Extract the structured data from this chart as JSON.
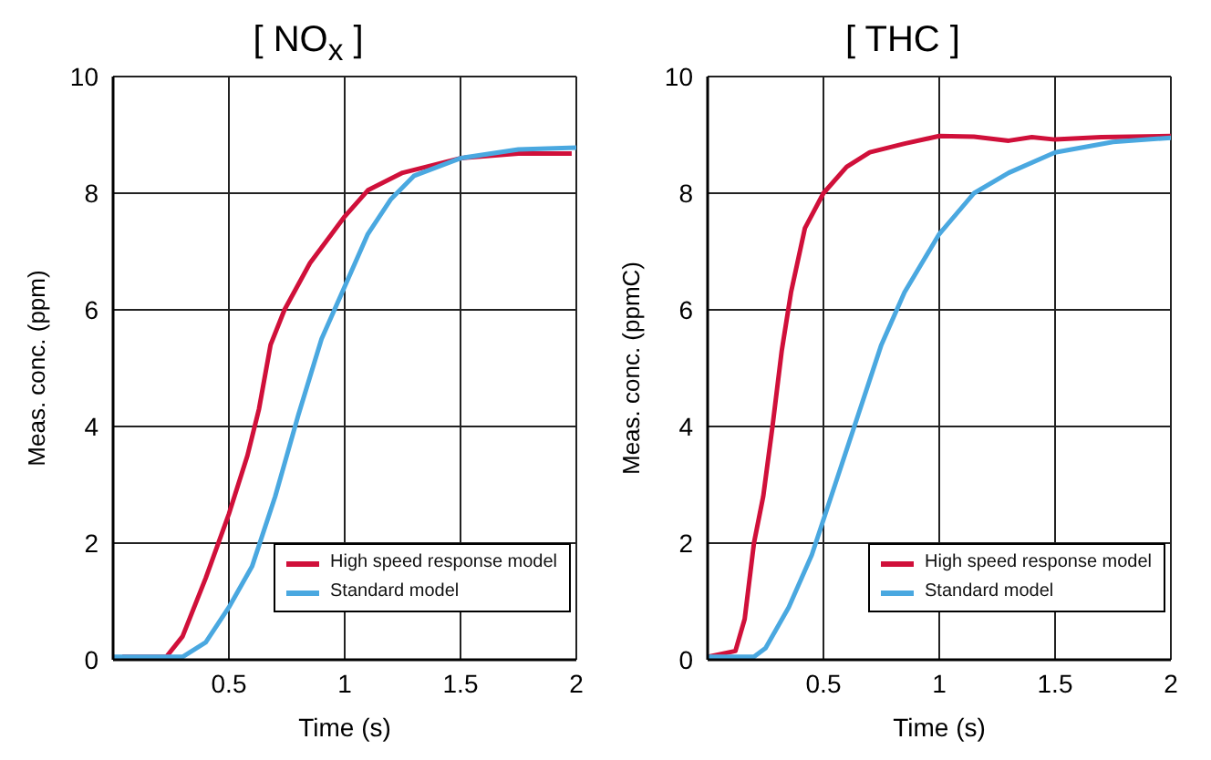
{
  "chart_data": [
    {
      "type": "line",
      "title": "[ NO$_{x}$ ]",
      "xlabel": "Time (s)",
      "ylabel": "Meas. conc. (ppm)",
      "xlim": [
        0,
        2
      ],
      "xticks": [
        0.5,
        1,
        1.5,
        2
      ],
      "ylim": [
        0,
        10
      ],
      "yticks": [
        0,
        2,
        4,
        6,
        8,
        10
      ],
      "grid": true,
      "legend": "bottom right",
      "marker": "none",
      "line_style": "solid",
      "series": [
        {
          "name": "High speed response model",
          "color": "#d0103a",
          "x": [
            0.04,
            0.23,
            0.3,
            0.4,
            0.5,
            0.58,
            0.63,
            0.68,
            0.74,
            0.85,
            1.0,
            1.1,
            1.25,
            1.5,
            1.75,
            1.98
          ],
          "values": [
            0.05,
            0.05,
            0.4,
            1.4,
            2.5,
            3.5,
            4.3,
            5.4,
            6.0,
            6.8,
            7.6,
            8.05,
            8.35,
            8.6,
            8.68,
            8.68
          ]
        },
        {
          "name": "Standard model",
          "color": "#4aa8e0",
          "x": [
            0.0,
            0.3,
            0.4,
            0.5,
            0.6,
            0.7,
            0.8,
            0.9,
            1.0,
            1.1,
            1.2,
            1.3,
            1.5,
            1.75,
            2.0
          ],
          "values": [
            0.05,
            0.05,
            0.3,
            0.9,
            1.6,
            2.8,
            4.2,
            5.5,
            6.4,
            7.3,
            7.9,
            8.3,
            8.6,
            8.75,
            8.78
          ]
        }
      ]
    },
    {
      "type": "line",
      "title": "[ THC ]",
      "xlabel": "Time (s)",
      "ylabel": "Meas. conc. (ppmC)",
      "xlim": [
        0,
        2
      ],
      "xticks": [
        0.5,
        1,
        1.5,
        2
      ],
      "ylim": [
        0,
        10
      ],
      "yticks": [
        0,
        2,
        4,
        6,
        8,
        10
      ],
      "grid": true,
      "legend": "bottom right",
      "marker": "none",
      "line_style": "solid",
      "series": [
        {
          "name": "High speed response model",
          "color": "#d0103a",
          "x": [
            0.0,
            0.12,
            0.16,
            0.2,
            0.24,
            0.28,
            0.32,
            0.36,
            0.42,
            0.5,
            0.6,
            0.7,
            0.85,
            1.0,
            1.15,
            1.3,
            1.4,
            1.5,
            1.7,
            2.0
          ],
          "values": [
            0.05,
            0.15,
            0.7,
            2.0,
            2.8,
            4.0,
            5.3,
            6.3,
            7.4,
            8.0,
            8.45,
            8.7,
            8.85,
            8.98,
            8.97,
            8.9,
            8.96,
            8.92,
            8.96,
            8.98
          ]
        },
        {
          "name": "Standard model",
          "color": "#4aa8e0",
          "x": [
            0.0,
            0.2,
            0.25,
            0.35,
            0.45,
            0.55,
            0.65,
            0.75,
            0.85,
            1.0,
            1.15,
            1.3,
            1.5,
            1.75,
            2.0
          ],
          "values": [
            0.05,
            0.05,
            0.2,
            0.9,
            1.8,
            3.0,
            4.2,
            5.4,
            6.3,
            7.3,
            8.0,
            8.35,
            8.7,
            8.88,
            8.95
          ]
        }
      ]
    }
  ]
}
